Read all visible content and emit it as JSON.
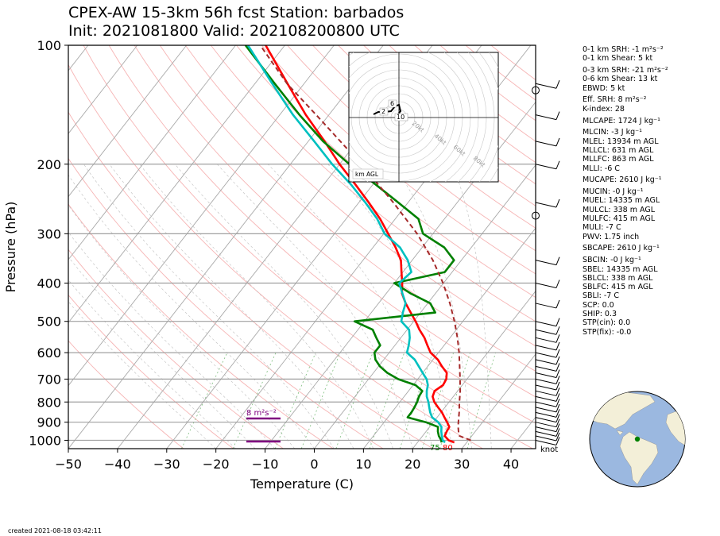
{
  "chart_data": {
    "type": "skew-t",
    "title_line1": "CPEX-AW 15-3km  56h fcst  Station: barbados",
    "title_line2": "Init: 2021081800  Valid: 202108200800 UTC",
    "xlabel": "Temperature (C)",
    "ylabel": "Pressure (hPa)",
    "xlim": [
      -50,
      45
    ],
    "ylim": [
      1050,
      100
    ],
    "x_ticks": [
      "−50",
      "−40",
      "−30",
      "−20",
      "−10",
      "0",
      "10",
      "20",
      "30",
      "40"
    ],
    "y_ticks": [
      "100",
      "200",
      "300",
      "400",
      "500",
      "600",
      "700",
      "800",
      "900",
      "1000"
    ],
    "log_pressure_axis": true,
    "series": [
      {
        "name": "temperature",
        "color": "#ff0000",
        "pressure": [
          1013,
          1000,
          975,
          950,
          925,
          900,
          875,
          850,
          825,
          800,
          775,
          750,
          725,
          700,
          675,
          650,
          625,
          600,
          575,
          550,
          525,
          500,
          475,
          450,
          425,
          400,
          375,
          350,
          325,
          300,
          275,
          250,
          225,
          200,
          175,
          150,
          125,
          100
        ],
        "value": [
          27.5,
          26.0,
          24.5,
          24.2,
          24.0,
          22.8,
          21.5,
          20.2,
          18.6,
          17.0,
          15.8,
          15.3,
          16.1,
          15.8,
          14.9,
          12.9,
          11.0,
          8.4,
          6.6,
          4.8,
          2.5,
          0.4,
          -2.0,
          -4.5,
          -6.8,
          -8.4,
          -10.3,
          -12.3,
          -15.4,
          -19.1,
          -23.1,
          -28.0,
          -33.6,
          -40.0,
          -46.7,
          -54.7,
          -63.4,
          -73.9
        ]
      },
      {
        "name": "dewpoint",
        "color": "#008000",
        "pressure": [
          1013,
          1000,
          975,
          950,
          925,
          900,
          875,
          850,
          825,
          800,
          775,
          750,
          725,
          700,
          675,
          650,
          625,
          600,
          575,
          550,
          525,
          500,
          475,
          450,
          425,
          400,
          375,
          350,
          325,
          300,
          275,
          250,
          225,
          200,
          175,
          150,
          125,
          100
        ],
        "value": [
          24.9,
          24.5,
          23.3,
          22.4,
          21.7,
          18.5,
          14.0,
          14.0,
          13.8,
          13.5,
          13.0,
          12.8,
          10.5,
          6.0,
          2.8,
          0.3,
          -1.7,
          -3.0,
          -3.0,
          -5.0,
          -7.0,
          -12.0,
          3.0,
          0.5,
          -5.0,
          -10.0,
          -1.5,
          -1.5,
          -5.5,
          -12.0,
          -15.3,
          -22.0,
          -29.5,
          -38.0,
          -47.0,
          -56.0,
          -66.0,
          -78.0
        ]
      },
      {
        "name": "wetbulb",
        "color": "#00c0c0",
        "pressure": [
          1013,
          1000,
          975,
          950,
          925,
          900,
          875,
          850,
          825,
          800,
          775,
          750,
          725,
          700,
          675,
          650,
          625,
          600,
          575,
          550,
          525,
          500,
          475,
          450,
          425,
          400,
          375,
          350,
          325,
          300,
          275,
          250,
          225,
          200,
          175,
          150,
          125,
          100
        ],
        "value": [
          25.6,
          24.8,
          23.9,
          23.1,
          22.4,
          21.0,
          19.0,
          17.8,
          16.8,
          15.8,
          14.6,
          13.7,
          13.0,
          11.8,
          10.0,
          8.2,
          6.3,
          3.6,
          2.8,
          1.8,
          0.4,
          -2.5,
          -3.6,
          -4.5,
          -6.7,
          -9.0,
          -8.3,
          -10.9,
          -14.5,
          -19.8,
          -23.7,
          -28.7,
          -34.5,
          -41.5,
          -48.8,
          -57.3,
          -66.5,
          -77.5
        ]
      },
      {
        "name": "parcel",
        "color": "#a52a2a",
        "dash": true,
        "pressure": [
          1000,
          975,
          950,
          925,
          900,
          850,
          800,
          750,
          700,
          650,
          600,
          550,
          500,
          450,
          400,
          350,
          300,
          250,
          200,
          150,
          125,
          100
        ],
        "value": [
          30.5,
          27.5,
          26.6,
          25.8,
          25.1,
          23.7,
          22.1,
          20.5,
          18.6,
          16.5,
          14.2,
          11.5,
          8.3,
          4.5,
          -0.1,
          -5.8,
          -13.2,
          -23.0,
          -35.6,
          -52.6,
          -63.5,
          -75.0
        ]
      }
    ],
    "surface_labels": {
      "dewpoint": "75",
      "temperature": "80"
    },
    "srh_bar_label": "8 m²s⁻²",
    "barb_unit_label": "knot",
    "hodograph": {
      "rings": [
        "20kt",
        "40kt",
        "60kt",
        "80kt"
      ],
      "height_labels": [
        "2",
        "6",
        "10"
      ],
      "legend": "km AGL"
    }
  },
  "indices": [
    "0-1 km SRH: -1 m²s⁻²",
    "0-1 km Shear: 5 kt",
    "0-3 km SRH: -21 m²s⁻²",
    "0-6 km Shear: 13 kt",
    "EBWD: 5 kt",
    "Eff. SRH: 8 m²s⁻²",
    "K-index: 28",
    "MLCAPE: 1724 J kg⁻¹",
    "MLCIN: -3 J kg⁻¹",
    "MLEL: 13934 m AGL",
    "MLLCL: 631 m AGL",
    "MLLFC: 863 m AGL",
    "MLLI: -6 C",
    "MUCAPE: 2610 J kg⁻¹",
    "MUCIN: -0 J kg⁻¹",
    "MUEL: 14335 m AGL",
    "MULCL: 338 m AGL",
    "MULFC: 415 m AGL",
    "MULI: -7 C",
    "PWV: 1.75 inch",
    "SBCAPE: 2610 J kg⁻¹",
    "SBCIN: -0 J kg⁻¹",
    "SBEL: 14335 m AGL",
    "SBLCL: 338 m AGL",
    "SBLFC: 415 m AGL",
    "SBLI: -7 C",
    "SCP: 0.0",
    "SHIP: 0.3",
    "STP(cin): 0.0",
    "STP(fix): -0.0"
  ],
  "created": "created 2021-08-18 03:42:11"
}
